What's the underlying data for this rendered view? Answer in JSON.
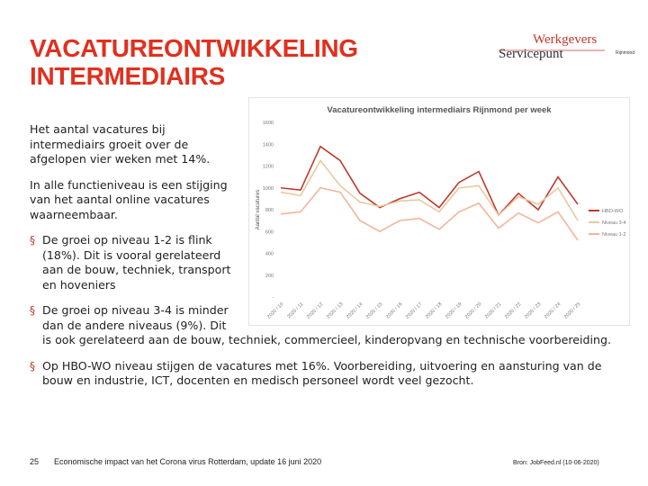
{
  "header": {
    "title": "VACATUREONTWIKKELING INTERMEDIAIRS",
    "logo": {
      "line1": "Werkgevers",
      "line2": "Servicepunt",
      "line3": "Rijnmond"
    }
  },
  "body": {
    "paragraphs": [
      "Het aantal vacatures bij intermediairs groeit over de afgelopen vier weken met 14%.",
      "In alle functieniveau is een stijging van het aantal online vacatures waarneembaar."
    ],
    "bullets": [
      "De groei op niveau 1-2 is flink (18%). Dit is vooral gerelateerd aan de bouw, techniek, transport en hoveniers",
      "De groei op niveau 3-4 is minder dan de andere niveaus (9%). Dit is ook gerelateerd aan de bouw, techniek, commercieel, kinderopvang en technische voorbereiding.",
      "Op HBO-WO niveau stijgen de vacatures met 16%. Voorbereiding, uitvoering en aansturing van de bouw en industrie, ICT, docenten en medisch personeel wordt veel gezocht."
    ]
  },
  "footer": {
    "page": "25",
    "text": "Economische impact van het Corona virus Rotterdam, update 16 juni 2020",
    "source": "Bron: JobFeed.nl (10-06-2020)"
  },
  "chart_data": {
    "type": "line",
    "title": "Vacatureontwikkeling intermediairs Rijnmond per week",
    "y_label": "Aantal vacatures",
    "categories": [
      "2020 / 10",
      "2020 / 11",
      "2020 / 12",
      "2020 / 13",
      "2020 / 14",
      "2020 / 15",
      "2020 / 16",
      "2020 / 17",
      "2020 / 18",
      "2020 / 19",
      "2020 / 20",
      "2020 / 21",
      "2020 / 22",
      "2020 / 23",
      "2020 / 24",
      "2020 / 25"
    ],
    "series": [
      {
        "name": "HBO-WO",
        "color": "#c0392b",
        "values": [
          1000,
          980,
          1380,
          1250,
          950,
          820,
          900,
          960,
          820,
          1050,
          1150,
          750,
          950,
          800,
          1100,
          850
        ]
      },
      {
        "name": "Niveau 3-4",
        "color": "#e6c9a0",
        "values": [
          960,
          930,
          1250,
          1020,
          870,
          830,
          880,
          890,
          780,
          1000,
          1020,
          750,
          920,
          850,
          1000,
          700
        ]
      },
      {
        "name": "Niveau 1-2",
        "color": "#f2b59c",
        "values": [
          760,
          780,
          1000,
          960,
          700,
          600,
          700,
          720,
          620,
          780,
          860,
          630,
          770,
          680,
          780,
          520
        ]
      }
    ],
    "ylim": [
      0,
      1600
    ],
    "yticks": [
      {
        "value": 0,
        "label": "-"
      },
      200,
      400,
      600,
      800,
      1000,
      1200,
      1400,
      1600
    ],
    "legend": "right"
  }
}
